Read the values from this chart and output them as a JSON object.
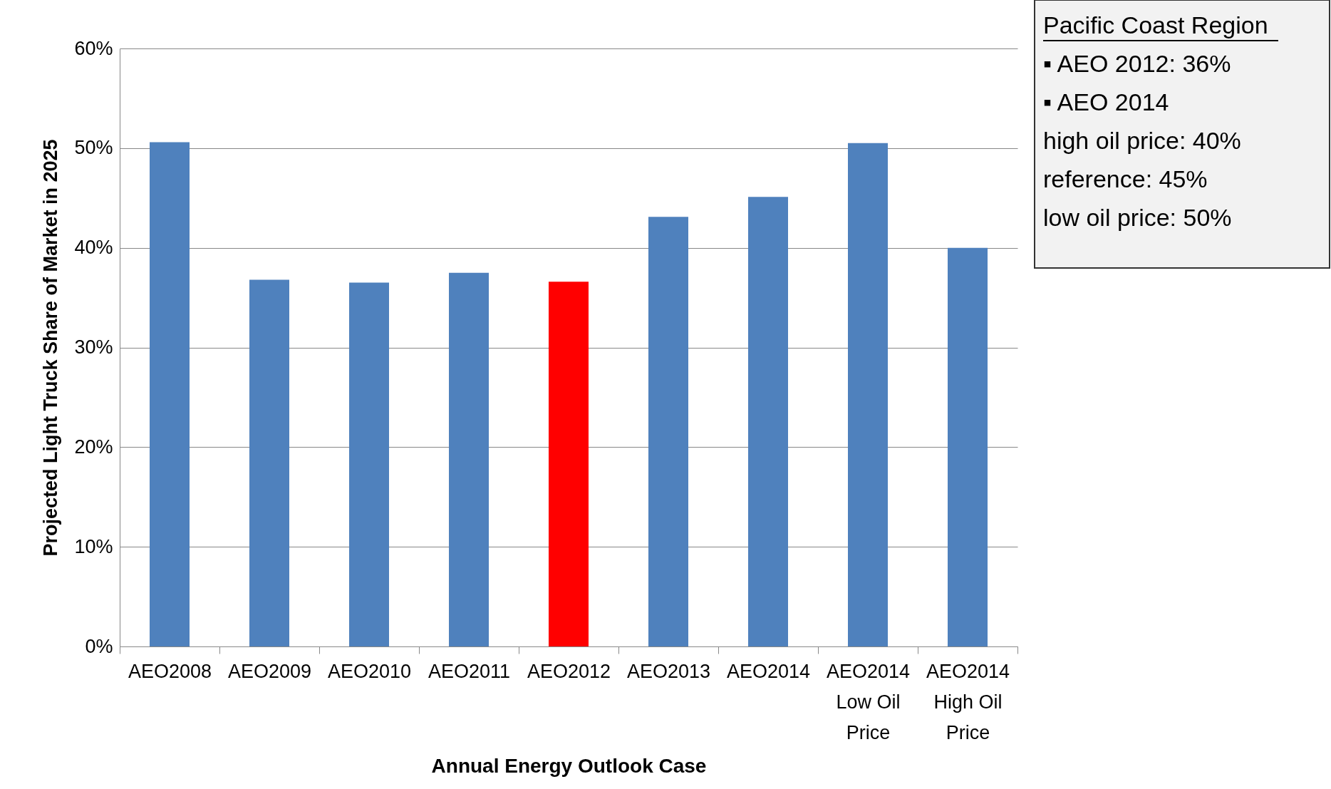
{
  "chart_data": {
    "type": "bar",
    "xlabel": "Annual Energy Outlook Case",
    "ylabel": "Projected Light Truck Share of Market in 2025",
    "categories": [
      "AEO2008",
      "AEO2009",
      "AEO2010",
      "AEO2011",
      "AEO2012",
      "AEO2013",
      "AEO2014",
      "AEO2014\nLow Oil\nPrice",
      "AEO2014\nHigh Oil\nPrice"
    ],
    "values": [
      50.6,
      36.8,
      36.5,
      37.5,
      36.6,
      43.1,
      45.1,
      50.5,
      40.0
    ],
    "colors": [
      "#4f81bd",
      "#4f81bd",
      "#4f81bd",
      "#4f81bd",
      "#ff0000",
      "#4f81bd",
      "#4f81bd",
      "#4f81bd",
      "#4f81bd"
    ],
    "ylim": [
      0,
      60
    ],
    "yticks": [
      {
        "value": 0,
        "label": "0%"
      },
      {
        "value": 10,
        "label": "10%"
      },
      {
        "value": 20,
        "label": "20%"
      },
      {
        "value": 30,
        "label": "30%"
      },
      {
        "value": 40,
        "label": "40%"
      },
      {
        "value": 50,
        "label": "50%"
      },
      {
        "value": 60,
        "label": "60%"
      }
    ],
    "grid": "y",
    "annotations": [
      "Pacific Coast Region",
      "▪  AEO 2012:      36%",
      "▪  AEO 2014",
      "    high oil price:  40%",
      "    reference:        45%",
      "    low oil price:    50%"
    ]
  }
}
